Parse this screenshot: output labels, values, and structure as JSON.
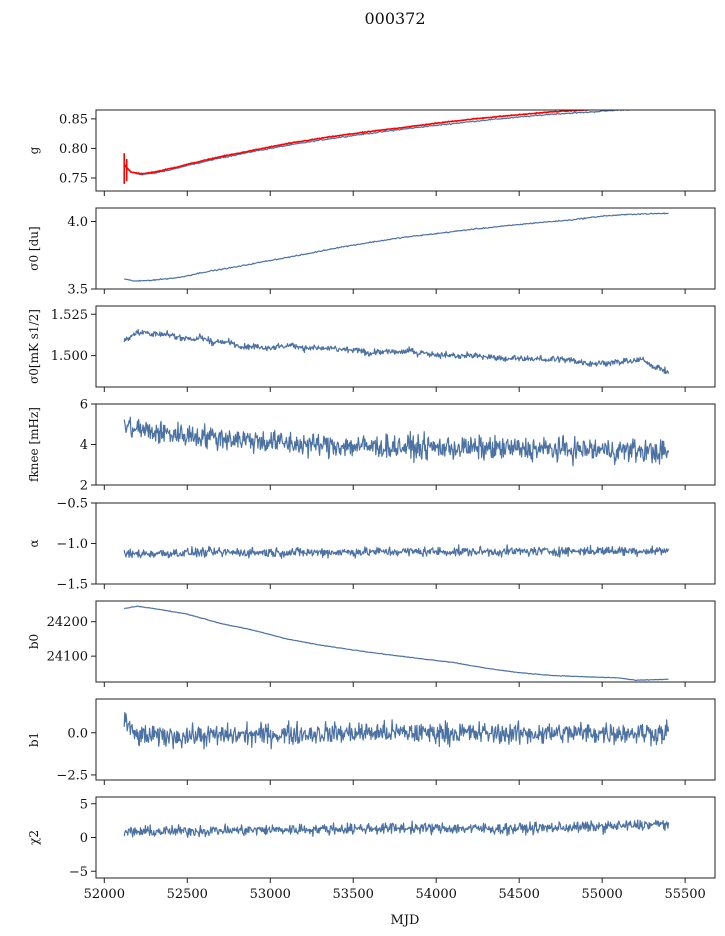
{
  "figure": {
    "title": "000372"
  },
  "chart_data": [
    {
      "type": "line",
      "name": "g",
      "ylabel": "g",
      "ylim": [
        0.728,
        0.865
      ],
      "yticks": [
        0.75,
        0.8,
        0.85
      ],
      "yticklabels": [
        "0.75",
        "0.80",
        "0.85"
      ],
      "xlim": [
        51950,
        55680
      ],
      "series": [
        {
          "color": "#4c72a4",
          "shape": "trend",
          "x": [
            52120,
            52160,
            52220,
            52300,
            52400,
            52500,
            52700,
            52900,
            53100,
            53300,
            53500,
            53700,
            53900,
            54100,
            54300,
            54500,
            54700,
            54900,
            55100,
            55200
          ],
          "y": [
            0.773,
            0.76,
            0.756,
            0.758,
            0.764,
            0.771,
            0.784,
            0.795,
            0.805,
            0.814,
            0.822,
            0.829,
            0.836,
            0.842,
            0.848,
            0.853,
            0.858,
            0.861,
            0.865,
            0.866
          ],
          "noise": 0.0015
        },
        {
          "color": "#ff0000",
          "shape": "trend",
          "x": [
            52120,
            52160,
            52220,
            52300,
            52400,
            52500,
            52700,
            52900,
            53100,
            53300,
            53500,
            53700,
            53900,
            54100,
            54300,
            54500,
            54700,
            54900,
            55000
          ],
          "y": [
            0.772,
            0.76,
            0.757,
            0.76,
            0.766,
            0.773,
            0.786,
            0.797,
            0.808,
            0.817,
            0.825,
            0.832,
            0.839,
            0.846,
            0.852,
            0.857,
            0.862,
            0.865,
            0.867
          ],
          "noise": 0.001
        }
      ],
      "errorbars": [
        {
          "x": 52120,
          "ylow": 0.74,
          "yhigh": 0.792
        },
        {
          "x": 52135,
          "ylow": 0.745,
          "yhigh": 0.782
        }
      ]
    },
    {
      "type": "line",
      "name": "sigma0",
      "ylabel": "σ0 [du]",
      "ylim": [
        3.5,
        4.1
      ],
      "yticks": [
        3.5,
        4.0
      ],
      "yticklabels": [
        "3.5",
        "4.0"
      ],
      "xlim": [
        51950,
        55680
      ],
      "series": [
        {
          "color": "#4c72a4",
          "shape": "trend",
          "x": [
            52120,
            52150,
            52200,
            52300,
            52450,
            52600,
            52800,
            53000,
            53200,
            53400,
            53600,
            53800,
            54000,
            54200,
            54400,
            54600,
            54800,
            55000,
            55200,
            55400
          ],
          "y": [
            3.575,
            3.565,
            3.558,
            3.567,
            3.585,
            3.625,
            3.665,
            3.712,
            3.755,
            3.805,
            3.845,
            3.882,
            3.91,
            3.94,
            3.965,
            3.99,
            4.01,
            4.04,
            4.055,
            4.06
          ],
          "noise": 0.006
        }
      ]
    },
    {
      "type": "line",
      "name": "sigma0-mks",
      "ylabel": "σ0[mK s1/2]",
      "ylim": [
        1.481,
        1.53
      ],
      "yticks": [
        1.5,
        1.525
      ],
      "yticklabels": [
        "1.500",
        "1.525"
      ],
      "xlim": [
        51950,
        55680
      ],
      "series": [
        {
          "color": "#4c72a4",
          "shape": "wavy",
          "x": [
            52120,
            52200,
            52350,
            52500,
            52700,
            52900,
            53100,
            53300,
            53500,
            53700,
            53900,
            54100,
            54300,
            54500,
            54700,
            54900,
            55100,
            55250,
            55350,
            55400
          ],
          "y": [
            1.509,
            1.515,
            1.512,
            1.511,
            1.508,
            1.506,
            1.506,
            1.504,
            1.503,
            1.502,
            1.502,
            1.5,
            1.499,
            1.498,
            1.498,
            1.496,
            1.496,
            1.497,
            1.492,
            1.49
          ],
          "noise": 0.0025
        }
      ]
    },
    {
      "type": "line",
      "name": "fknee",
      "ylabel": "fknee [mHz]",
      "ylim": [
        2,
        6
      ],
      "yticks": [
        2,
        4,
        6
      ],
      "yticklabels": [
        "2",
        "4",
        "6"
      ],
      "xlim": [
        51950,
        55680
      ],
      "series": [
        {
          "color": "#4c72a4",
          "shape": "noisy",
          "x": [
            52120,
            52300,
            52600,
            52900,
            53200,
            53600,
            54000,
            54400,
            54800,
            55200,
            55400
          ],
          "y": [
            4.9,
            4.6,
            4.4,
            4.2,
            4.0,
            3.9,
            3.85,
            3.8,
            3.75,
            3.7,
            3.6
          ],
          "noise": 0.5
        }
      ]
    },
    {
      "type": "line",
      "name": "alpha",
      "ylabel": "α",
      "ylim": [
        -1.5,
        -0.5
      ],
      "yticks": [
        -1.5,
        -1.0,
        -0.5
      ],
      "yticklabels": [
        "−1.5",
        "−1.0",
        "−0.5"
      ],
      "xlim": [
        51950,
        55680
      ],
      "series": [
        {
          "color": "#4c72a4",
          "shape": "noisy",
          "x": [
            52120,
            52600,
            53200,
            53800,
            54400,
            55000,
            55400
          ],
          "y": [
            -1.13,
            -1.11,
            -1.11,
            -1.1,
            -1.1,
            -1.09,
            -1.09
          ],
          "noise": 0.05
        }
      ]
    },
    {
      "type": "line",
      "name": "b0",
      "ylabel": "b0",
      "ylim": [
        24025,
        24260
      ],
      "yticks": [
        24100,
        24200
      ],
      "yticklabels": [
        "24100",
        "24200"
      ],
      "xlim": [
        51950,
        55680
      ],
      "series": [
        {
          "color": "#4c72a4",
          "shape": "trend",
          "x": [
            52120,
            52200,
            52300,
            52500,
            52700,
            52900,
            53100,
            53300,
            53500,
            53700,
            53900,
            54100,
            54300,
            54500,
            54700,
            54900,
            55100,
            55200,
            55400
          ],
          "y": [
            24238,
            24245,
            24238,
            24222,
            24195,
            24175,
            24150,
            24132,
            24118,
            24105,
            24093,
            24082,
            24065,
            24052,
            24044,
            24040,
            24037,
            24030,
            24033
          ],
          "noise": 1.2
        }
      ]
    },
    {
      "type": "line",
      "name": "b1",
      "ylabel": "b1",
      "ylim": [
        -2.8,
        2.0
      ],
      "yticks": [
        -2.5,
        0.0
      ],
      "yticklabels": [
        "−2.5",
        "0.0"
      ],
      "xlim": [
        51950,
        55680
      ],
      "series": [
        {
          "color": "#4c72a4",
          "shape": "noisy",
          "x": [
            52120,
            52150,
            52200,
            52500,
            53000,
            53500,
            54000,
            54500,
            55000,
            55400
          ],
          "y": [
            1.0,
            0.2,
            -0.2,
            -0.2,
            -0.1,
            0.0,
            0.0,
            -0.05,
            0.0,
            0.0
          ],
          "noise": 0.55
        }
      ]
    },
    {
      "type": "line",
      "name": "chi2",
      "ylabel": "χ2",
      "ylim": [
        -6,
        6
      ],
      "yticks": [
        -5,
        0,
        5
      ],
      "yticklabels": [
        "−5",
        "0",
        "5"
      ],
      "xlim": [
        51950,
        55680
      ],
      "xticks": [
        52000,
        52500,
        53000,
        53500,
        54000,
        54500,
        55000,
        55500
      ],
      "xticklabels": [
        "52000",
        "52500",
        "53000",
        "53500",
        "54000",
        "54500",
        "55000",
        "55500"
      ],
      "xlabel": "MJD",
      "series": [
        {
          "color": "#4c72a4",
          "shape": "noisy",
          "x": [
            52120,
            52600,
            53200,
            53800,
            54400,
            55000,
            55400
          ],
          "y": [
            0.8,
            1.0,
            1.2,
            1.4,
            1.3,
            1.6,
            2.0
          ],
          "noise": 0.7
        }
      ]
    }
  ]
}
